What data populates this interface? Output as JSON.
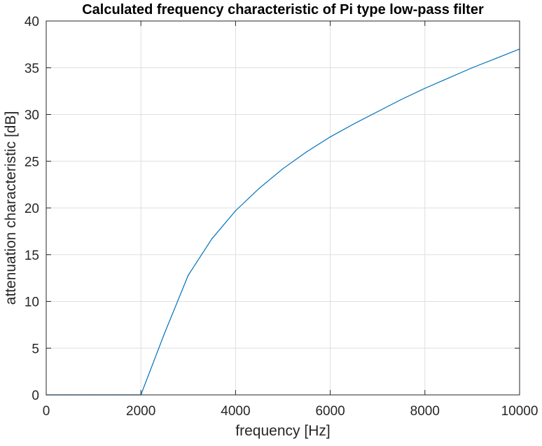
{
  "chart_data": {
    "type": "line",
    "title": "Calculated frequency characteristic of Pi type low-pass filter",
    "xlabel": "frequency [Hz]",
    "ylabel": "attenuation characteristic [dB]",
    "xlim": [
      0,
      10000
    ],
    "ylim": [
      0,
      40
    ],
    "xticks": [
      0,
      2000,
      4000,
      6000,
      8000,
      10000
    ],
    "yticks": [
      0,
      5,
      10,
      15,
      20,
      25,
      30,
      35,
      40
    ],
    "xtick_labels": [
      "0",
      "2000",
      "4000",
      "6000",
      "8000",
      "10000"
    ],
    "ytick_labels": [
      "0",
      "5",
      "10",
      "15",
      "20",
      "25",
      "30",
      "35",
      "40"
    ],
    "grid": true,
    "colors": {
      "line": "#0072BD",
      "grid": "#DFDFDF",
      "axes": "#262626"
    },
    "series": [
      {
        "x": [
          0,
          500,
          1000,
          1500,
          2000,
          2500,
          3000,
          3500,
          4000,
          4500,
          5000,
          5500,
          6000,
          6500,
          7000,
          7500,
          8000,
          8500,
          9000,
          9500,
          10000
        ],
        "values": [
          0,
          0,
          0,
          0,
          0,
          6.6,
          12.8,
          16.7,
          19.7,
          22.1,
          24.2,
          26.0,
          27.6,
          29.0,
          30.3,
          31.6,
          32.8,
          33.9,
          35.0,
          36.0,
          37.0
        ]
      }
    ]
  }
}
